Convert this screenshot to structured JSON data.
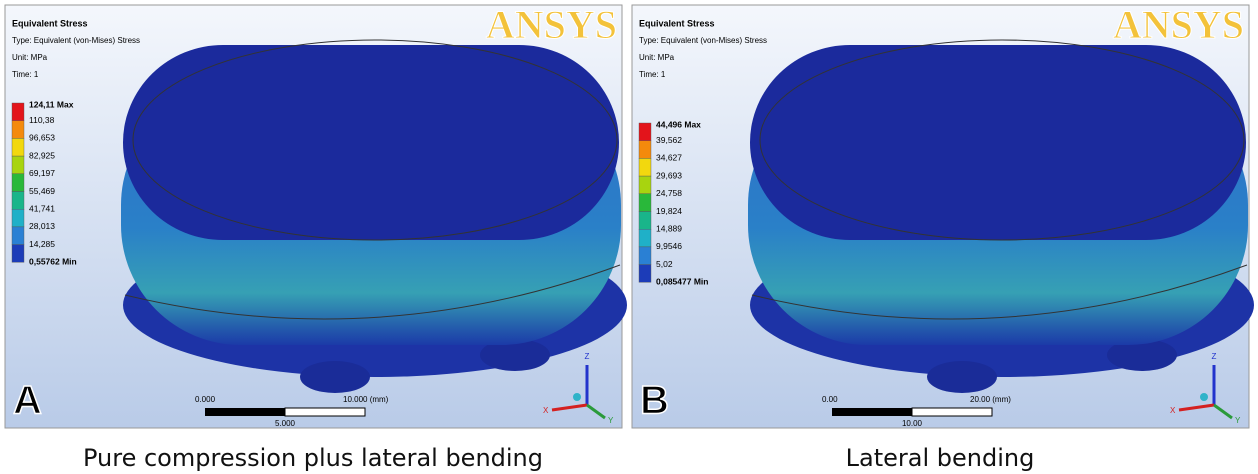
{
  "panels": [
    {
      "title": "Equivalent Stress",
      "type_line": "Type: Equivalent (von-Mises) Stress",
      "unit": "Unit: MPa",
      "time": "Time: 1",
      "logo": "ANSYS",
      "legend": [
        "124,11 Max",
        "110,38",
        "96,653",
        "82,925",
        "69,197",
        "55,469",
        "41,741",
        "28,013",
        "14,285",
        "0,55762 Min"
      ],
      "scale": {
        "start": "0.000",
        "end": "10.000 (mm)",
        "mid": "5.000"
      },
      "axes": [
        "Z",
        "X",
        "Y"
      ],
      "letter": "A",
      "caption": "Pure compression plus lateral bending"
    },
    {
      "title": "Equivalent Stress",
      "type_line": "Type: Equivalent (von-Mises) Stress",
      "unit": "Unit: MPa",
      "time": "Time: 1",
      "logo": "ANSYS",
      "legend": [
        "44,496 Max",
        "39,562",
        "34,627",
        "29,693",
        "24,758",
        "19,824",
        "14,889",
        "9,9546",
        "5,02",
        "0,085477 Min"
      ],
      "scale": {
        "start": "0.00",
        "end": "20.00 (mm)",
        "mid": "10.00"
      },
      "axes": [
        "Z",
        "X",
        "Y"
      ],
      "letter": "B",
      "caption": "Lateral bending"
    }
  ]
}
